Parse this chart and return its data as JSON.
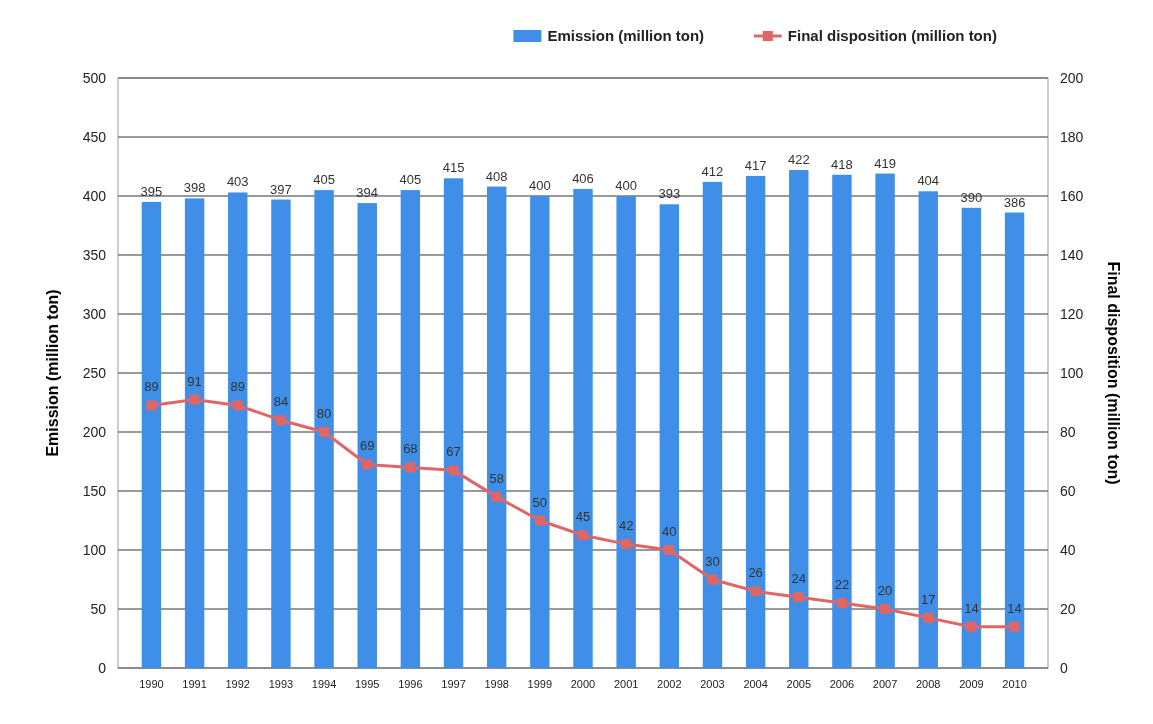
{
  "chart_data": {
    "type": "bar",
    "xlabel": null,
    "ylabel": "Emission (million ton)",
    "y2label": "Final disposition (million ton)",
    "categories": [
      "1990",
      "1991",
      "1992",
      "1993",
      "1994",
      "1995",
      "1996",
      "1997",
      "1998",
      "1999",
      "2000",
      "2001",
      "2002",
      "2003",
      "2004",
      "2005",
      "2006",
      "2007",
      "2008",
      "2009",
      "2010"
    ],
    "series": [
      {
        "name": "Emission (million ton)",
        "color": "#3f8fe8",
        "values": [
          395,
          398,
          403,
          397,
          405,
          394,
          405,
          415,
          408,
          400,
          406,
          400,
          393,
          412,
          417,
          422,
          418,
          419,
          404,
          390,
          386
        ]
      },
      {
        "name": "Final disposition (million ton)",
        "type": "line",
        "axis": "y2",
        "color": "#e06666",
        "marker": "square",
        "values": [
          89,
          91,
          89,
          84,
          80,
          69,
          68,
          67,
          58,
          50,
          45,
          42,
          40,
          30,
          26,
          24,
          22,
          20,
          17,
          14,
          14
        ]
      }
    ],
    "ylim": [
      0,
      500
    ],
    "yticks": [
      0,
      50,
      100,
      150,
      200,
      250,
      300,
      350,
      400,
      450,
      500
    ],
    "y2lim": [
      0,
      200
    ],
    "y2ticks": [
      0,
      20,
      40,
      60,
      80,
      100,
      120,
      140,
      160,
      180,
      200
    ],
    "grid": "y",
    "legend": "top",
    "data_labels": true
  }
}
